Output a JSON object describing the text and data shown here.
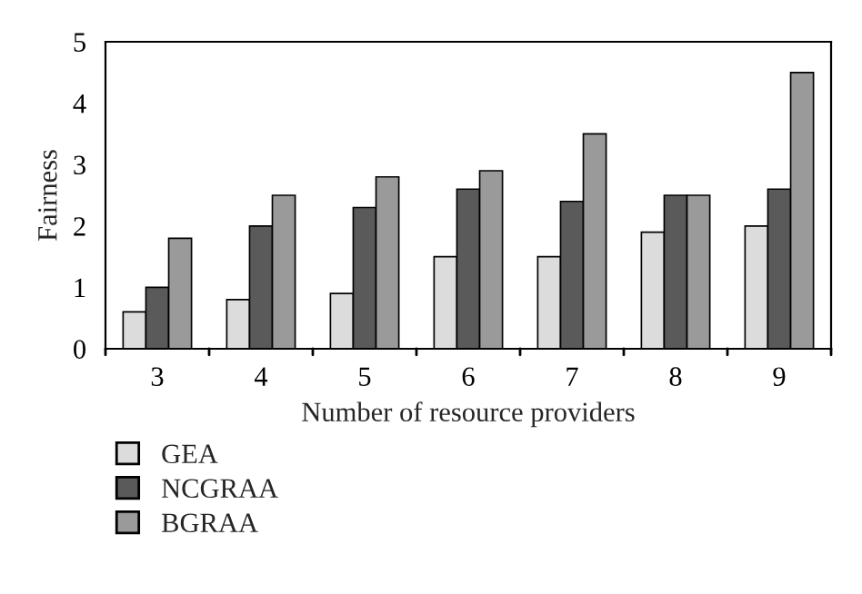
{
  "chart_data": {
    "type": "bar",
    "xlabel": "Number of resource providers",
    "ylabel": "Fairness",
    "categories": [
      "3",
      "4",
      "5",
      "6",
      "7",
      "8",
      "9"
    ],
    "series": [
      {
        "name": "GEA",
        "color": "#dcdcdc",
        "values": [
          0.6,
          0.8,
          0.9,
          1.5,
          1.5,
          1.9,
          2.0
        ]
      },
      {
        "name": "NCGRAA",
        "color": "#5a5a5a",
        "values": [
          1.0,
          2.0,
          2.3,
          2.6,
          2.4,
          2.5,
          2.6
        ]
      },
      {
        "name": "BGRAA",
        "color": "#9a9a9a",
        "values": [
          1.8,
          2.5,
          2.8,
          2.9,
          3.5,
          2.5,
          4.5
        ]
      }
    ],
    "ylim": [
      0,
      5
    ],
    "yticks": [
      0,
      1,
      2,
      3,
      4,
      5
    ],
    "grid": false,
    "legend": "bottom left"
  }
}
